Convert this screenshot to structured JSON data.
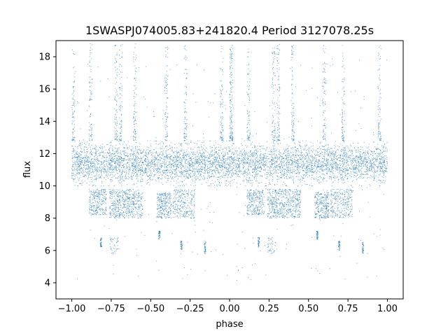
{
  "chart_data": {
    "type": "scatter",
    "title": "1SWASPJ074005.83+241820.4 Period 3127078.25s",
    "xlabel": "phase",
    "ylabel": "flux",
    "xlim": [
      -1.1,
      1.1
    ],
    "ylim": [
      3.0,
      19.0
    ],
    "x_ticks": [
      -1.0,
      -0.75,
      -0.5,
      -0.25,
      0.0,
      0.25,
      0.5,
      0.75,
      1.0
    ],
    "x_tick_labels": [
      "−1.00",
      "−0.75",
      "−0.50",
      "−0.25",
      "0.00",
      "0.25",
      "0.50",
      "0.75",
      "1.00"
    ],
    "y_ticks": [
      4,
      6,
      8,
      10,
      12,
      14,
      16,
      18
    ],
    "y_tick_labels": [
      "4",
      "6",
      "8",
      "10",
      "12",
      "14",
      "16",
      "18"
    ],
    "grid": false,
    "marker_color": "#1f77b4",
    "series": [
      {
        "phase_span": [
          -1.0,
          1.0
        ],
        "main_band": {
          "center": 11.4,
          "spread": 0.6,
          "range": [
            10.0,
            12.8
          ]
        },
        "lower_band_clusters": [
          {
            "phase": [
              -0.89,
              -0.78
            ],
            "flux": [
              8.2,
              9.8
            ]
          },
          {
            "phase": [
              -0.76,
              -0.66
            ],
            "flux": [
              8.0,
              9.8
            ]
          },
          {
            "phase": [
              -0.66,
              -0.55
            ],
            "flux": [
              8.0,
              9.8
            ]
          },
          {
            "phase": [
              -0.46,
              -0.37
            ],
            "flux": [
              8.0,
              9.6
            ]
          },
          {
            "phase": [
              -0.36,
              -0.22
            ],
            "flux": [
              8.0,
              9.8
            ]
          }
        ],
        "low_clusters": [
          {
            "phase": [
              -0.82,
              -0.81
            ],
            "flux": [
              6.2,
              6.8
            ]
          },
          {
            "phase": [
              -0.76,
              -0.7
            ],
            "flux": [
              5.8,
              6.8
            ]
          },
          {
            "phase": [
              -0.45,
              -0.44
            ],
            "flux": [
              6.7,
              7.2
            ]
          },
          {
            "phase": [
              -0.31,
              -0.3
            ],
            "flux": [
              6.0,
              6.6
            ]
          },
          {
            "phase": [
              -0.16,
              -0.15
            ],
            "flux": [
              5.8,
              6.6
            ]
          }
        ],
        "spike_columns": [
          -0.99,
          -0.88,
          -0.72,
          -0.69,
          -0.6,
          -0.4,
          -0.28,
          -0.05,
          0.01
        ],
        "spike_range": [
          12.8,
          18.8
        ]
      }
    ]
  }
}
